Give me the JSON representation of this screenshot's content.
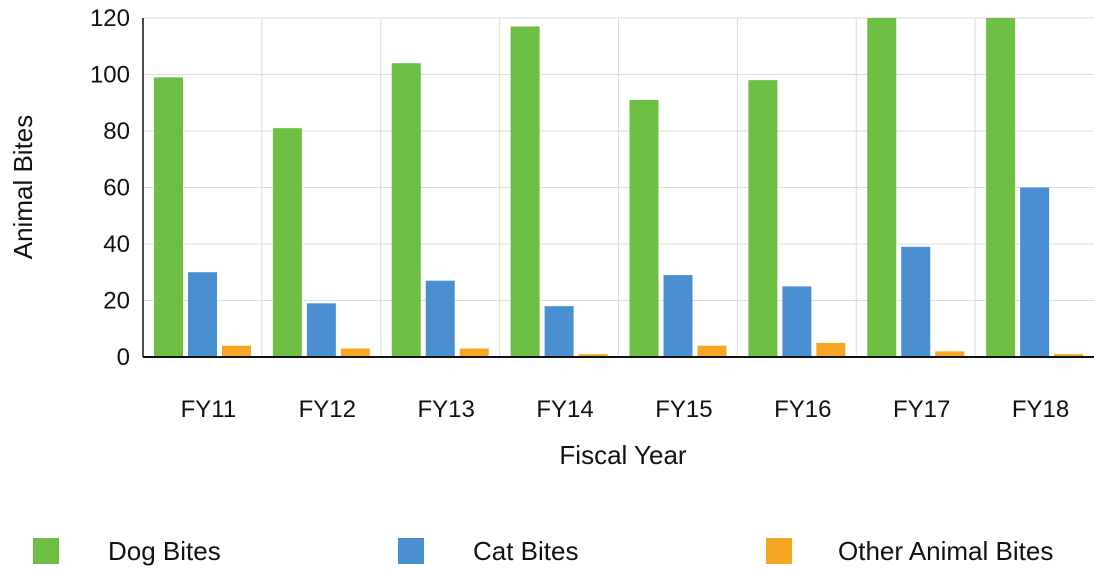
{
  "chart_data": {
    "type": "bar",
    "categories": [
      "FY11",
      "FY12",
      "FY13",
      "FY14",
      "FY15",
      "FY16",
      "FY17",
      "FY18"
    ],
    "series": [
      {
        "name": "Dog Bites",
        "color": "#6dbf44",
        "values": [
          99,
          81,
          104,
          117,
          91,
          98,
          120,
          120
        ]
      },
      {
        "name": "Cat Bites",
        "color": "#4a8fcf",
        "values": [
          30,
          19,
          27,
          18,
          29,
          25,
          39,
          60
        ]
      },
      {
        "name": "Other Animal Bites",
        "color": "#f5a623",
        "values": [
          4,
          3,
          3,
          1,
          4,
          5,
          2,
          1
        ]
      }
    ],
    "xlabel": "Fiscal Year",
    "ylabel": "Animal Bites",
    "ylim": [
      0,
      120
    ],
    "yticks": [
      0,
      20,
      40,
      60,
      80,
      100,
      120
    ],
    "grid": true,
    "legend_position": "bottom"
  }
}
